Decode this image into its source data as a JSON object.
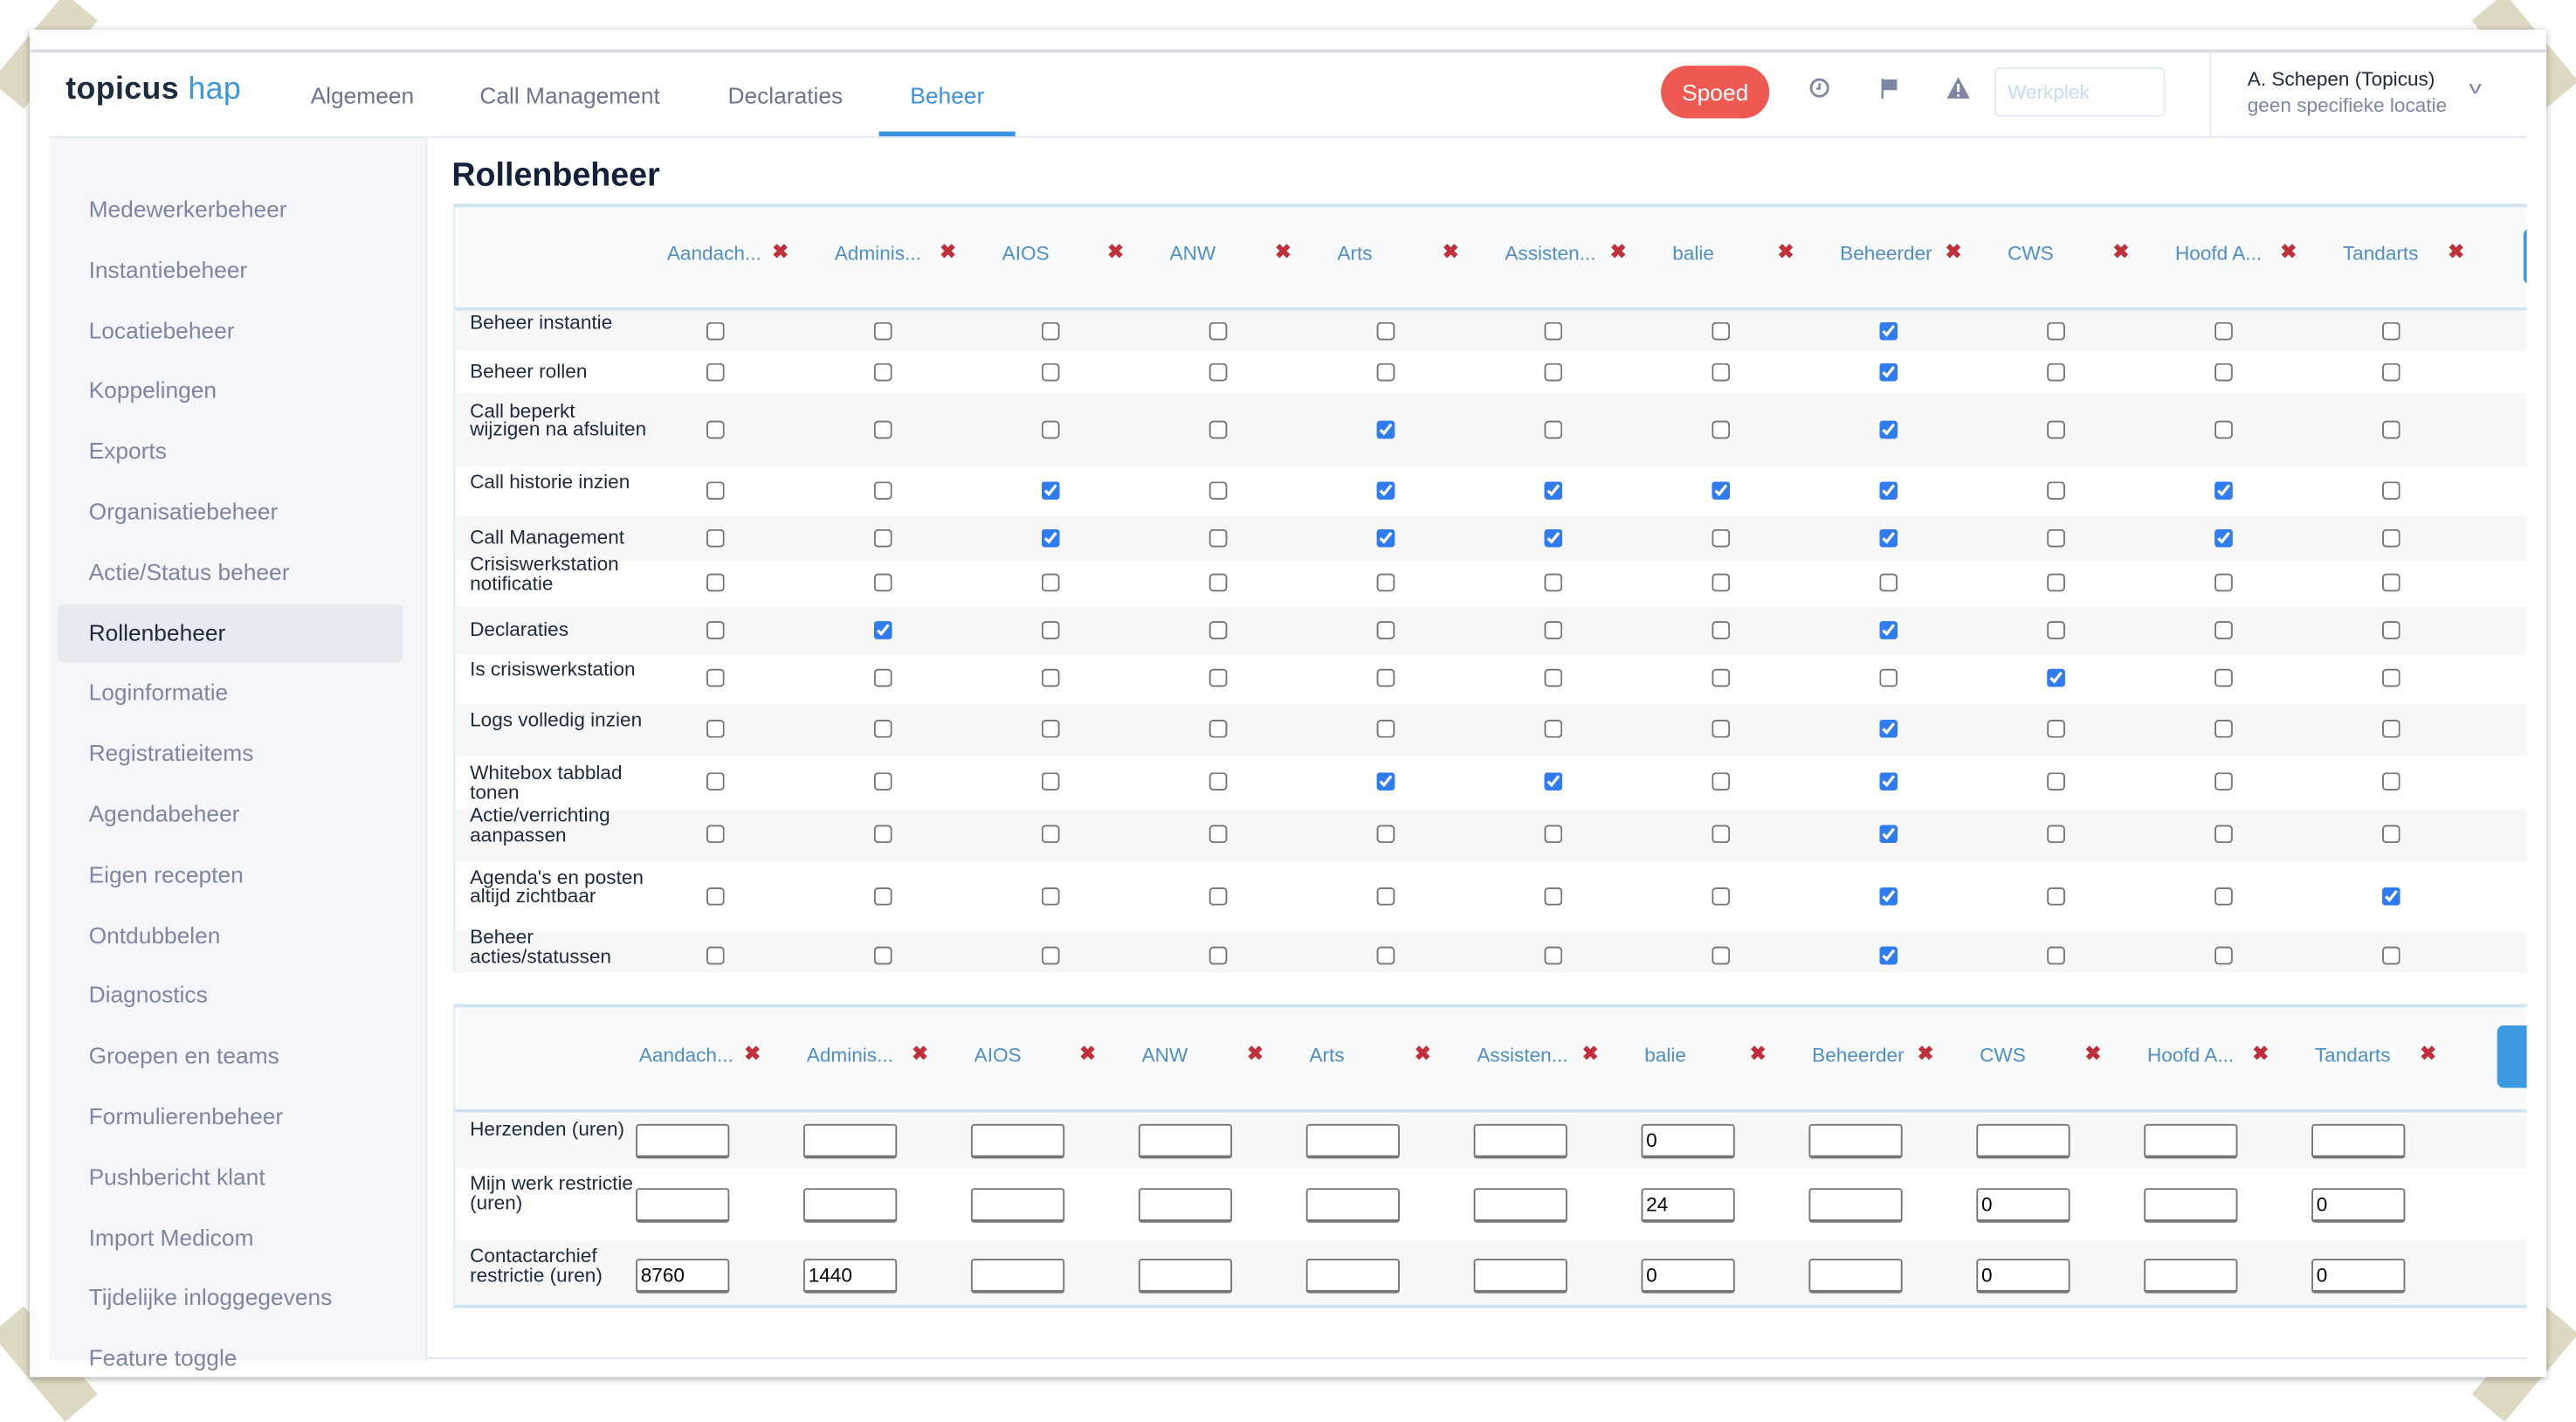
{
  "header": {
    "logo_main": "topicus",
    "logo_accent": "hap",
    "nav": [
      "Algemeen",
      "Call Management",
      "Declaraties",
      "Beheer"
    ],
    "active_nav": "Beheer",
    "spoed_label": "Spoed",
    "icons": [
      "clock-icon",
      "flag-icon",
      "warning-icon"
    ],
    "werkplek_placeholder": "Werkplek",
    "user_name": "A. Schepen (Topicus)",
    "user_location": "geen specifieke locatie"
  },
  "sidebar": {
    "items": [
      "Medewerkerbeheer",
      "Instantiebeheer",
      "Locatiebeheer",
      "Koppelingen",
      "Exports",
      "Organisatiebeheer",
      "Actie/Status beheer",
      "Rollenbeheer",
      "Loginformatie",
      "Registratieitems",
      "Agendabeheer",
      "Eigen recepten",
      "Ontdubbelen",
      "Diagnostics",
      "Groepen en teams",
      "Formulierenbeheer",
      "Pushbericht klant",
      "Import Medicom",
      "Tijdelijke inloggegevens",
      "Feature toggle"
    ],
    "active": "Rollenbeheer"
  },
  "main": {
    "title": "Rollenbeheer",
    "roles": [
      "Aandach...",
      "Adminis...",
      "AIOS",
      "ANW",
      "Arts",
      "Assisten...",
      "balie",
      "Beheerder",
      "CWS",
      "Hoofd A...",
      "Tandarts"
    ],
    "remove_glyph": "✖",
    "permissions": [
      {
        "label": "Beheer instantie",
        "checked": [
          7
        ]
      },
      {
        "label": "Beheer rollen",
        "checked": [
          7
        ]
      },
      {
        "label": "Call beperkt wijzigen na afsluiten",
        "checked": [
          4,
          7
        ]
      },
      {
        "label": "Call historie inzien",
        "checked": [
          2,
          4,
          5,
          6,
          7,
          9
        ]
      },
      {
        "label": "Call Management",
        "checked": [
          2,
          4,
          5,
          7,
          9
        ]
      },
      {
        "label": "Crisiswerkstation notificatie",
        "checked": []
      },
      {
        "label": "Declaraties",
        "checked": [
          1,
          7
        ]
      },
      {
        "label": "Is crisiswerkstation",
        "checked": [
          8
        ]
      },
      {
        "label": "Logs volledig inzien",
        "checked": [
          7
        ]
      },
      {
        "label": "Whitebox tabblad tonen",
        "checked": [
          4,
          5,
          7
        ]
      },
      {
        "label": "Actie/verrichting aanpassen",
        "checked": [
          7
        ]
      },
      {
        "label": "Agenda's en posten altijd zichtbaar",
        "checked": [
          7,
          10
        ]
      },
      {
        "label": "Beheer acties/statussen",
        "checked": [
          7
        ]
      }
    ],
    "settings": [
      {
        "label": "Herzenden (uren)",
        "values": [
          "",
          "",
          "",
          "",
          "",
          "",
          "0",
          "",
          "",
          "",
          ""
        ]
      },
      {
        "label": "Mijn werk restrictie (uren)",
        "values": [
          "",
          "",
          "",
          "",
          "",
          "",
          "24",
          "",
          "0",
          "",
          "0"
        ]
      },
      {
        "label": "Contactarchief restrictie (uren)",
        "values": [
          "8760",
          "1440",
          "",
          "",
          "",
          "",
          "0",
          "",
          "0",
          "",
          "0"
        ]
      }
    ]
  },
  "colors": {
    "accent": "#3b92dc",
    "spoed": "#ee5a52",
    "remove": "#c0303a"
  }
}
